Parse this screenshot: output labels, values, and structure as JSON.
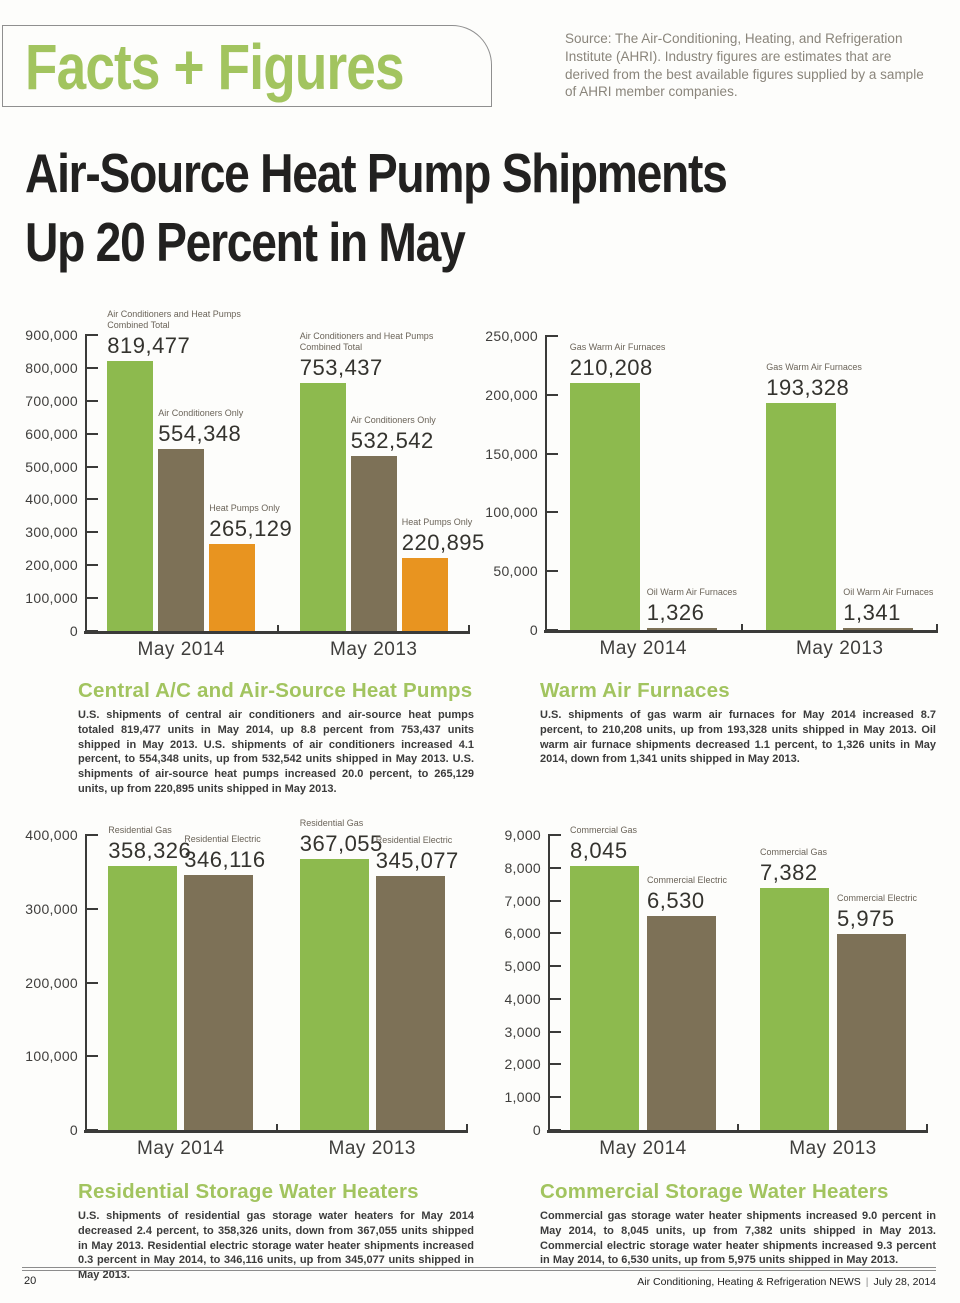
{
  "header": {
    "title": "Facts + Figures",
    "source_note": "Source: The Air-Conditioning, Heating, and Refrigeration Institute (AHRI). Industry figures are estimates that are derived from the best available figures supplied by a sample of AHRI member companies."
  },
  "headline": {
    "line1": "Air-Source Heat Pump Shipments",
    "line2": "Up 20 Percent in May"
  },
  "colors": {
    "accent_green": "#a2c45f",
    "bar_green": "#8dba4e",
    "bar_brown": "#7d7157",
    "bar_orange": "#e89420",
    "axis": "#3b3b39",
    "source_text": "#8a857b"
  },
  "chart_data": [
    {
      "type": "bar",
      "name": "central-ac-and-air-source-heat-pumps",
      "ymax": 900000,
      "yticks": [
        "900,000",
        "800,000",
        "700,000",
        "600,000",
        "500,000",
        "400,000",
        "300,000",
        "200,000",
        "100,000",
        "0"
      ],
      "categories": [
        "May 2014",
        "May 2013"
      ],
      "legend_position": "above-bars",
      "grid": false,
      "groups": [
        {
          "category": "May 2014",
          "bars": [
            {
              "label": "Air Conditioners and Heat Pumps Combined Total",
              "value": 819477,
              "display": "819,477",
              "color": "green",
              "wrap": true
            },
            {
              "label": "Air Conditioners Only",
              "value": 554348,
              "display": "554,348",
              "color": "brown"
            },
            {
              "label": "Heat Pumps Only",
              "value": 265129,
              "display": "265,129",
              "color": "orange"
            }
          ]
        },
        {
          "category": "May 2013",
          "bars": [
            {
              "label": "Air Conditioners and Heat Pumps Combined Total",
              "value": 753437,
              "display": "753,437",
              "color": "green",
              "wrap": true
            },
            {
              "label": "Air Conditioners Only",
              "value": 532542,
              "display": "532,542",
              "color": "brown"
            },
            {
              "label": "Heat Pumps Only",
              "value": 220895,
              "display": "220,895",
              "color": "orange"
            }
          ]
        }
      ]
    },
    {
      "type": "bar",
      "name": "warm-air-furnaces",
      "ymax": 250000,
      "yticks": [
        "250,000",
        "200,000",
        "150,000",
        "100,000",
        "50,000",
        "0"
      ],
      "categories": [
        "May 2014",
        "May 2013"
      ],
      "legend_position": "above-bars",
      "grid": false,
      "groups": [
        {
          "category": "May 2014",
          "bars": [
            {
              "label": "Gas Warm Air Furnaces",
              "value": 210208,
              "display": "210,208",
              "color": "green"
            },
            {
              "label": "Oil Warm Air Furnaces",
              "value": 1326,
              "display": "1,326",
              "color": "brown"
            }
          ]
        },
        {
          "category": "May 2013",
          "bars": [
            {
              "label": "Gas Warm Air Furnaces",
              "value": 193328,
              "display": "193,328",
              "color": "green"
            },
            {
              "label": "Oil Warm Air Furnaces",
              "value": 1341,
              "display": "1,341",
              "color": "brown"
            }
          ]
        }
      ]
    },
    {
      "type": "bar",
      "name": "residential-storage-water-heaters",
      "ymax": 400000,
      "yticks": [
        "400,000",
        "300,000",
        "200,000",
        "100,000",
        "0"
      ],
      "categories": [
        "May 2014",
        "May 2013"
      ],
      "legend_position": "above-bars",
      "grid": false,
      "groups": [
        {
          "category": "May 2014",
          "bars": [
            {
              "label": "Residential Gas",
              "value": 358326,
              "display": "358,326",
              "color": "green"
            },
            {
              "label": "Residential Electric",
              "value": 346116,
              "display": "346,116",
              "color": "brown"
            }
          ]
        },
        {
          "category": "May 2013",
          "bars": [
            {
              "label": "Residential Gas",
              "value": 367055,
              "display": "367,055",
              "color": "green"
            },
            {
              "label": "Residential Electric",
              "value": 345077,
              "display": "345,077",
              "color": "brown"
            }
          ]
        }
      ]
    },
    {
      "type": "bar",
      "name": "commercial-storage-water-heaters",
      "ymax": 9000,
      "yticks": [
        "9,000",
        "8,000",
        "7,000",
        "6,000",
        "5,000",
        "4,000",
        "3,000",
        "2,000",
        "1,000",
        "0"
      ],
      "categories": [
        "May 2014",
        "May 2013"
      ],
      "legend_position": "above-bars",
      "grid": false,
      "groups": [
        {
          "category": "May 2014",
          "bars": [
            {
              "label": "Commercial Gas",
              "value": 8045,
              "display": "8,045",
              "color": "green"
            },
            {
              "label": "Commercial Electric",
              "value": 6530,
              "display": "6,530",
              "color": "brown"
            }
          ]
        },
        {
          "category": "May 2013",
          "bars": [
            {
              "label": "Commercial Gas",
              "value": 7382,
              "display": "7,382",
              "color": "green"
            },
            {
              "label": "Commercial Electric",
              "value": 5975,
              "display": "5,975",
              "color": "brown"
            }
          ]
        }
      ]
    }
  ],
  "sections": [
    {
      "heading": "Central A/C and Air-Source Heat Pumps",
      "body": "U.S. shipments of central air conditioners and air-source heat pumps totaled 819,477 units in May 2014, up 8.8 percent from 753,437 units shipped in May 2013. U.S. shipments of air conditioners increased 4.1 percent, to 554,348 units, up from 532,542 units shipped in May 2013. U.S. shipments of air-source heat pumps increased 20.0 percent, to 265,129 units, up from 220,895 units shipped in May 2013."
    },
    {
      "heading": "Warm Air Furnaces",
      "body": "U.S. shipments of gas warm air furnaces for May 2014 increased 8.7 percent, to 210,208 units, up from 193,328 units shipped in May 2013. Oil warm air furnace shipments decreased 1.1 percent, to 1,326 units in May 2014, down from 1,341 units shipped in May 2013."
    },
    {
      "heading": "Residential Storage Water Heaters",
      "body": "U.S. shipments of residential gas storage water heaters for May 2014 decreased 2.4 percent, to 358,326 units, down from 367,055 units shipped in May 2013. Residential electric storage water heater shipments increased 0.3 percent in May 2014, to 346,116 units, up from 345,077 units shipped in May 2013."
    },
    {
      "heading": "Commercial Storage Water Heaters",
      "body": "Commercial gas storage water heater shipments increased 9.0 percent in May 2014, to 8,045 units, up from 7,382 units shipped in May 2013. Commercial electric storage water heater shipments increased 9.3 percent in May 2014, to 6,530 units, up from 5,975 units shipped in May 2013."
    }
  ],
  "footer": {
    "page_number": "20",
    "publication": "Air Conditioning, Heating & Refrigeration NEWS",
    "separator": "|",
    "date": "July 28, 2014"
  }
}
